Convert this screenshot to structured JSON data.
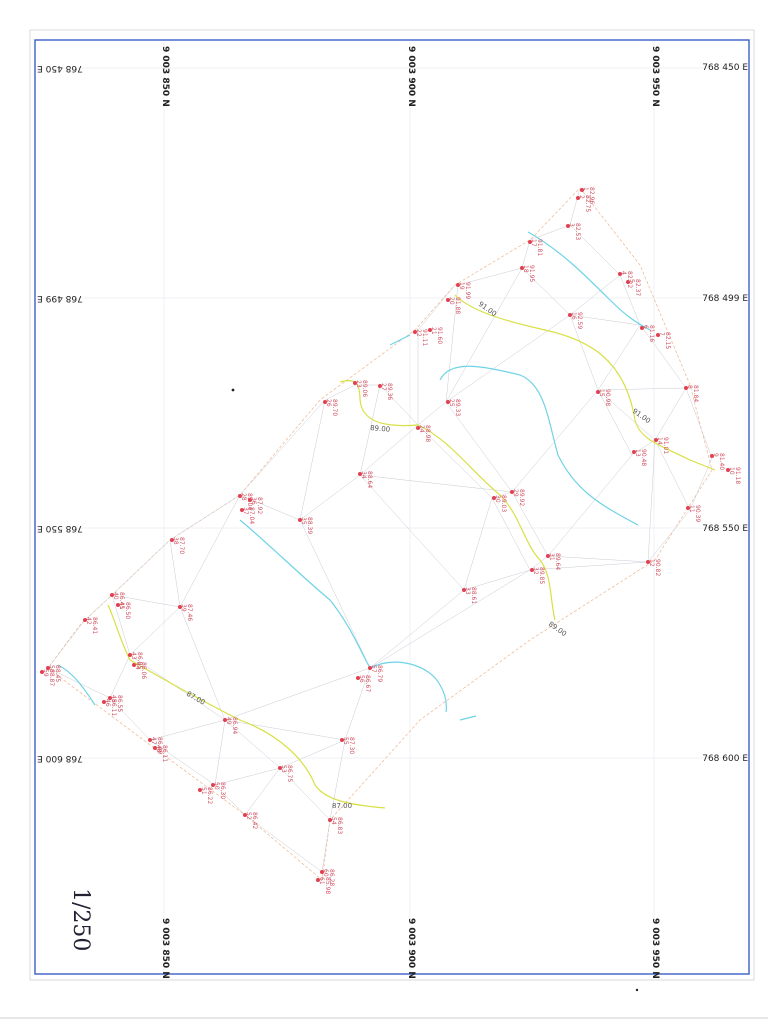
{
  "easting_labels": [
    "768 450 E",
    "768 499 E",
    "768 550 E",
    "768 600 E"
  ],
  "northing_labels": [
    "9 003 850 N",
    "9 003 900 N",
    "9 003 950 N"
  ],
  "contour_labels": [
    "91.00",
    "91.00",
    "89.00",
    "89.00",
    "87.00",
    "87.00"
  ],
  "scale_note": "1/250",
  "points": [
    {
      "n": "1",
      "z": "82.96"
    },
    {
      "n": "2",
      "z": "82.75"
    },
    {
      "n": "3",
      "z": "82.53"
    },
    {
      "n": "4",
      "z": "82.22"
    },
    {
      "n": "5",
      "z": "82.37"
    },
    {
      "n": "6",
      "z": "81.16"
    },
    {
      "n": "7",
      "z": "82.15"
    },
    {
      "n": "8",
      "z": "81.84"
    },
    {
      "n": "9",
      "z": "81.40"
    },
    {
      "n": "10",
      "z": "91.18"
    },
    {
      "n": "11",
      "z": "90.39"
    },
    {
      "n": "12",
      "z": "90.82"
    },
    {
      "n": "13",
      "z": "90.48"
    },
    {
      "n": "14",
      "z": "91.01"
    },
    {
      "n": "15",
      "z": "90.98"
    },
    {
      "n": "16",
      "z": "92.59"
    },
    {
      "n": "17",
      "z": "91.81"
    },
    {
      "n": "18",
      "z": "91.95"
    },
    {
      "n": "19",
      "z": "91.99"
    },
    {
      "n": "20",
      "z": "91.88"
    },
    {
      "n": "21",
      "z": "91.60"
    },
    {
      "n": "22",
      "z": "91.11"
    },
    {
      "n": "23",
      "z": "89.06"
    },
    {
      "n": "24",
      "z": "88.98"
    },
    {
      "n": "25",
      "z": "89.33"
    },
    {
      "n": "26",
      "z": "89.70"
    },
    {
      "n": "27",
      "z": "89.36"
    },
    {
      "n": "28",
      "z": "89.04"
    },
    {
      "n": "29",
      "z": "89.92"
    },
    {
      "n": "30",
      "z": "89.03"
    },
    {
      "n": "31",
      "z": "89.64"
    },
    {
      "n": "32",
      "z": "89.85"
    },
    {
      "n": "33",
      "z": "88.61"
    },
    {
      "n": "34",
      "z": "88.64"
    },
    {
      "n": "35",
      "z": "88.39"
    },
    {
      "n": "36",
      "z": "87.92"
    },
    {
      "n": "37",
      "z": "87.04"
    },
    {
      "n": "38",
      "z": "87.70"
    },
    {
      "n": "39",
      "z": "87.46"
    },
    {
      "n": "40",
      "z": "86.45"
    },
    {
      "n": "41",
      "z": "86.50"
    },
    {
      "n": "42",
      "z": "86.41"
    },
    {
      "n": "43",
      "z": "86.85"
    },
    {
      "n": "44",
      "z": "86.06"
    },
    {
      "n": "45",
      "z": "86.55"
    },
    {
      "n": "46",
      "z": "86.11"
    },
    {
      "n": "47",
      "z": "86.49"
    },
    {
      "n": "48",
      "z": "86.11"
    },
    {
      "n": "49",
      "z": "86.94"
    },
    {
      "n": "50",
      "z": "86.30"
    },
    {
      "n": "51",
      "z": "86.22"
    },
    {
      "n": "52",
      "z": "86.42"
    },
    {
      "n": "53",
      "z": "86.75"
    },
    {
      "n": "54",
      "z": "86.83"
    },
    {
      "n": "55",
      "z": "87.30"
    },
    {
      "n": "56",
      "z": "86.67"
    },
    {
      "n": "57",
      "z": "86.79"
    },
    {
      "n": "58",
      "z": "88.45"
    },
    {
      "n": "59",
      "z": "88.87"
    },
    {
      "n": "60",
      "z": "86.28"
    },
    {
      "n": "61",
      "z": "85.98"
    }
  ]
}
